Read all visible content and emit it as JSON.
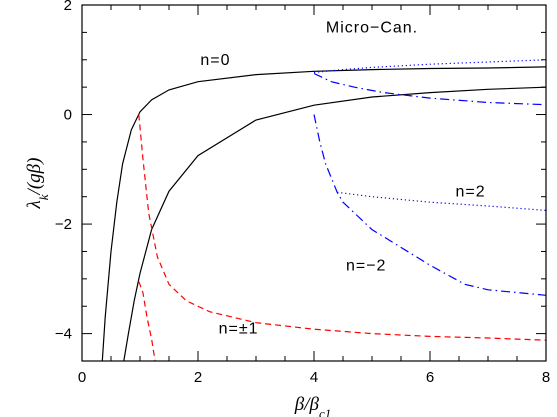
{
  "chart_data": {
    "type": "line",
    "xlabel": "β/β_c1",
    "ylabel": "λ_k/(gβ)",
    "xlim": [
      0,
      8
    ],
    "ylim": [
      -4.5,
      2
    ],
    "x_ticks": [
      0,
      2,
      4,
      6,
      8
    ],
    "y_ticks": [
      -4,
      -2,
      0,
      2
    ],
    "x_tick_labels": [
      "0",
      "2",
      "4",
      "6",
      "8"
    ],
    "y_tick_labels": [
      "−4",
      "−2",
      "0",
      "2"
    ],
    "grid": false,
    "annotations": [
      {
        "text": "Micro−Can.",
        "x": 5.0,
        "y": 1.5
      },
      {
        "text": "n=0",
        "x": 2.3,
        "y": 0.9
      },
      {
        "text": "n=2",
        "x": 6.7,
        "y": -1.5
      },
      {
        "text": "n=−2",
        "x": 4.9,
        "y": -2.85
      },
      {
        "text": "n=±1",
        "x": 2.7,
        "y": -4.0
      }
    ],
    "series": [
      {
        "style": "solid",
        "color": "#000000",
        "x": [
          0.35,
          0.4,
          0.5,
          0.6,
          0.7,
          0.85,
          1.0,
          1.2,
          1.5,
          2.0,
          3.0,
          4.0,
          5.0,
          6.0,
          7.0,
          8.0
        ],
        "y": [
          -4.5,
          -3.7,
          -2.5,
          -1.6,
          -0.9,
          -0.28,
          0.05,
          0.27,
          0.45,
          0.6,
          0.73,
          0.79,
          0.82,
          0.84,
          0.85,
          0.87
        ]
      },
      {
        "style": "solid",
        "color": "#000000",
        "x": [
          0.72,
          0.8,
          0.9,
          1.0,
          1.2,
          1.5,
          2.0,
          3.0,
          4.0,
          5.0,
          6.0,
          7.0,
          8.0
        ],
        "y": [
          -4.5,
          -4.0,
          -3.4,
          -2.9,
          -2.1,
          -1.4,
          -0.75,
          -0.1,
          0.17,
          0.32,
          0.4,
          0.46,
          0.5
        ]
      },
      {
        "style": "dashed",
        "color": "#ff0000",
        "x": [
          0.98,
          1.05,
          1.15,
          1.3,
          1.5,
          1.8,
          2.2,
          3.0,
          4.0,
          5.0,
          6.0,
          7.0,
          8.0
        ],
        "y": [
          0.0,
          -0.8,
          -1.8,
          -2.6,
          -3.1,
          -3.4,
          -3.6,
          -3.8,
          -3.92,
          -4.0,
          -4.05,
          -4.08,
          -4.12
        ]
      },
      {
        "style": "dashed",
        "color": "#ff0000",
        "x": [
          0.98,
          1.05,
          1.12,
          1.2,
          1.26
        ],
        "y": [
          -3.05,
          -3.25,
          -3.7,
          -4.1,
          -4.5
        ]
      },
      {
        "style": "dotted",
        "color": "#0000ff",
        "x": [
          4.0,
          4.5,
          5.0,
          6.0,
          7.0,
          8.0
        ],
        "y": [
          0.77,
          0.82,
          0.86,
          0.92,
          0.96,
          1.0
        ]
      },
      {
        "style": "dashdot",
        "color": "#0000ff",
        "x": [
          4.0,
          4.3,
          4.7,
          5.2,
          6.0,
          7.0,
          8.0
        ],
        "y": [
          0.75,
          0.6,
          0.5,
          0.4,
          0.3,
          0.22,
          0.18
        ]
      },
      {
        "style": "dotted",
        "color": "#0000ff",
        "x": [
          4.4,
          5.0,
          6.0,
          7.0,
          8.0
        ],
        "y": [
          -1.42,
          -1.5,
          -1.6,
          -1.67,
          -1.75
        ]
      },
      {
        "style": "dashdot",
        "color": "#0000ff",
        "x": [
          4.0,
          4.1,
          4.2,
          4.4,
          4.5,
          5.0,
          6.0,
          6.6,
          7.0,
          8.0
        ],
        "y": [
          0.0,
          -0.5,
          -0.9,
          -1.42,
          -1.6,
          -2.1,
          -2.75,
          -3.1,
          -3.2,
          -3.3
        ]
      }
    ]
  }
}
